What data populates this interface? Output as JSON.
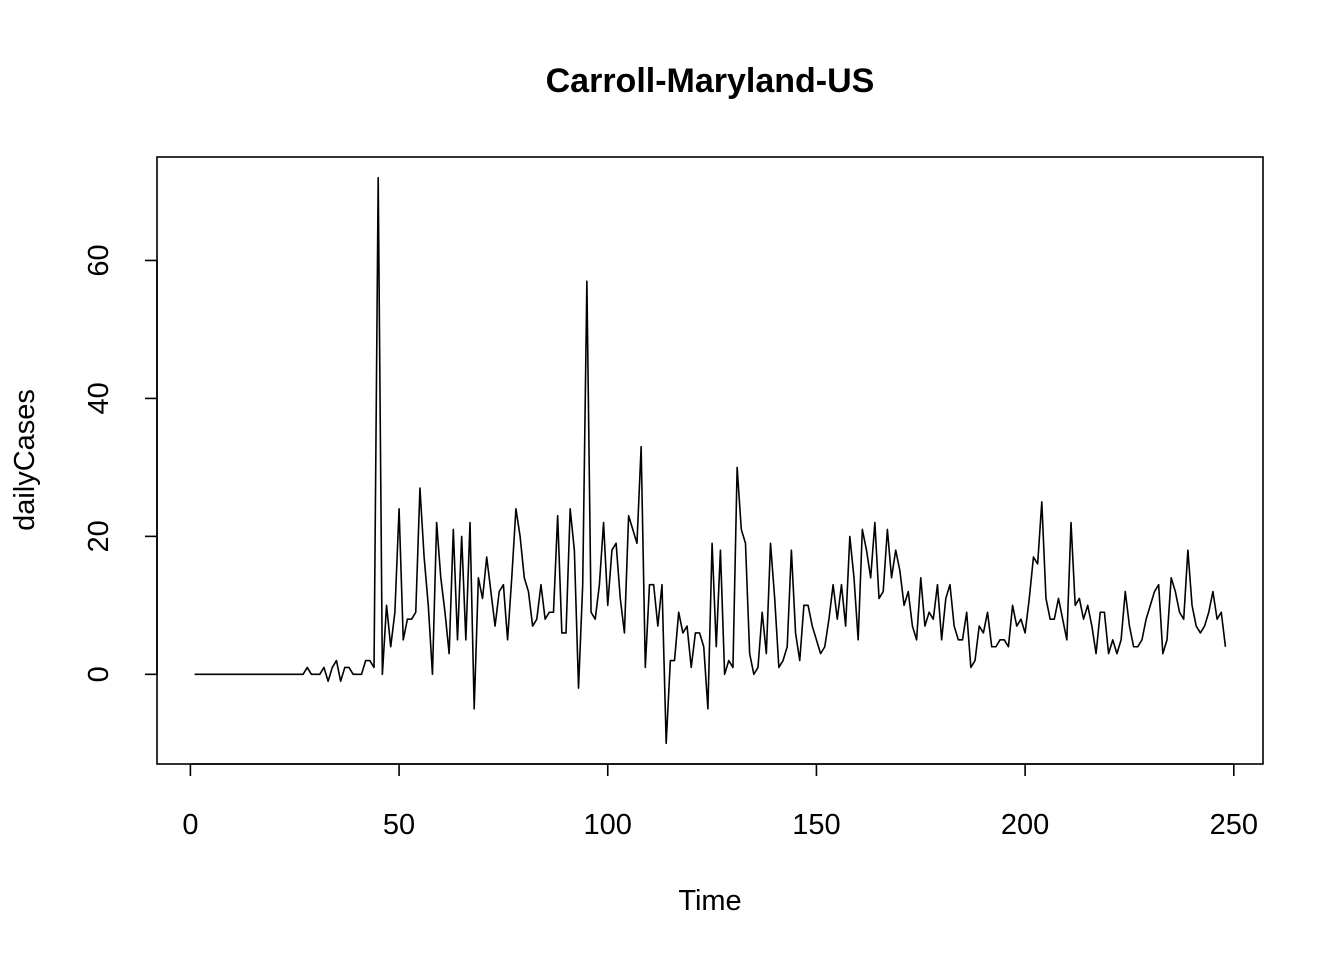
{
  "chart_data": {
    "type": "line",
    "title": "Carroll-Maryland-US",
    "xlabel": "Time",
    "ylabel": "dailyCases",
    "xlim": [
      -8,
      257
    ],
    "ylim": [
      -13,
      75
    ],
    "xticks": [
      0,
      50,
      100,
      150,
      200,
      250
    ],
    "yticks": [
      0,
      20,
      40,
      60
    ],
    "grid": false,
    "legend": "none",
    "line_color": "#000000",
    "series": [
      {
        "x": [
          1,
          2,
          3,
          4,
          5,
          6,
          7,
          8,
          9,
          10,
          11,
          12,
          13,
          14,
          15,
          16,
          17,
          18,
          19,
          20,
          21,
          22,
          23,
          24,
          25,
          26,
          27,
          28,
          29,
          30,
          31,
          32,
          33,
          34,
          35,
          36,
          37,
          38,
          39,
          40,
          41,
          42,
          43,
          44,
          45,
          46,
          47,
          48,
          49,
          50,
          51,
          52,
          53,
          54,
          55,
          56,
          57,
          58,
          59,
          60,
          61,
          62,
          63,
          64,
          65,
          66,
          67,
          68,
          69,
          70,
          71,
          72,
          73,
          74,
          75,
          76,
          77,
          78,
          79,
          80,
          81,
          82,
          83,
          84,
          85,
          86,
          87,
          88,
          89,
          90,
          91,
          92,
          93,
          94,
          95,
          96,
          97,
          98,
          99,
          100,
          101,
          102,
          103,
          104,
          105,
          106,
          107,
          108,
          109,
          110,
          111,
          112,
          113,
          114,
          115,
          116,
          117,
          118,
          119,
          120,
          121,
          122,
          123,
          124,
          125,
          126,
          127,
          128,
          129,
          130,
          131,
          132,
          133,
          134,
          135,
          136,
          137,
          138,
          139,
          140,
          141,
          142,
          143,
          144,
          145,
          146,
          147,
          148,
          149,
          150,
          151,
          152,
          153,
          154,
          155,
          156,
          157,
          158,
          159,
          160,
          161,
          162,
          163,
          164,
          165,
          166,
          167,
          168,
          169,
          170,
          171,
          172,
          173,
          174,
          175,
          176,
          177,
          178,
          179,
          180,
          181,
          182,
          183,
          184,
          185,
          186,
          187,
          188,
          189,
          190,
          191,
          192,
          193,
          194,
          195,
          196,
          197,
          198,
          199,
          200,
          201,
          202,
          203,
          204,
          205,
          206,
          207,
          208,
          209,
          210,
          211,
          212,
          213,
          214,
          215,
          216,
          217,
          218,
          219,
          220,
          221,
          222,
          223,
          224,
          225,
          226,
          227,
          228,
          229,
          230,
          231,
          232,
          233,
          234,
          235,
          236,
          237,
          238,
          239,
          240,
          241,
          242,
          243,
          244,
          245,
          246,
          247,
          248
        ],
        "values": [
          0,
          0,
          0,
          0,
          0,
          0,
          0,
          0,
          0,
          0,
          0,
          0,
          0,
          0,
          0,
          0,
          0,
          0,
          0,
          0,
          0,
          0,
          0,
          0,
          0,
          0,
          0,
          1,
          0,
          0,
          0,
          1,
          -1,
          1,
          2,
          -1,
          1,
          1,
          0,
          0,
          0,
          2,
          2,
          1,
          72,
          0,
          10,
          4,
          9,
          24,
          5,
          8,
          8,
          9,
          27,
          17,
          10,
          0,
          22,
          14,
          9,
          3,
          21,
          5,
          20,
          5,
          22,
          -5,
          14,
          11,
          17,
          12,
          7,
          12,
          13,
          5,
          14,
          24,
          20,
          14,
          12,
          7,
          8,
          13,
          8,
          9,
          9,
          23,
          6,
          6,
          24,
          18,
          -2,
          13,
          57,
          9,
          8,
          13,
          22,
          10,
          18,
          19,
          11,
          6,
          23,
          21,
          19,
          33,
          1,
          13,
          13,
          7,
          13,
          -10,
          2,
          2,
          9,
          6,
          7,
          1,
          6,
          6,
          4,
          -5,
          19,
          4,
          18,
          0,
          2,
          1,
          30,
          21,
          19,
          3,
          0,
          1,
          9,
          3,
          19,
          11,
          1,
          2,
          4,
          18,
          6,
          2,
          10,
          10,
          7,
          5,
          3,
          4,
          8,
          13,
          8,
          13,
          7,
          20,
          14,
          5,
          21,
          18,
          14,
          22,
          11,
          12,
          21,
          14,
          18,
          15,
          10,
          12,
          7,
          5,
          14,
          7,
          9,
          8,
          13,
          5,
          11,
          13,
          7,
          5,
          5,
          9,
          1,
          2,
          7,
          6,
          9,
          4,
          4,
          5,
          5,
          4,
          10,
          7,
          8,
          6,
          11,
          17,
          16,
          25,
          11,
          8,
          8,
          11,
          8,
          5,
          22,
          10,
          11,
          8,
          10,
          7,
          3,
          9,
          9,
          3,
          5,
          3,
          5,
          12,
          7,
          4,
          4,
          5,
          8,
          10,
          12,
          13,
          3,
          5,
          14,
          12,
          9,
          8,
          18,
          10,
          7,
          6,
          7,
          9,
          12,
          8,
          9,
          4
        ]
      }
    ]
  }
}
